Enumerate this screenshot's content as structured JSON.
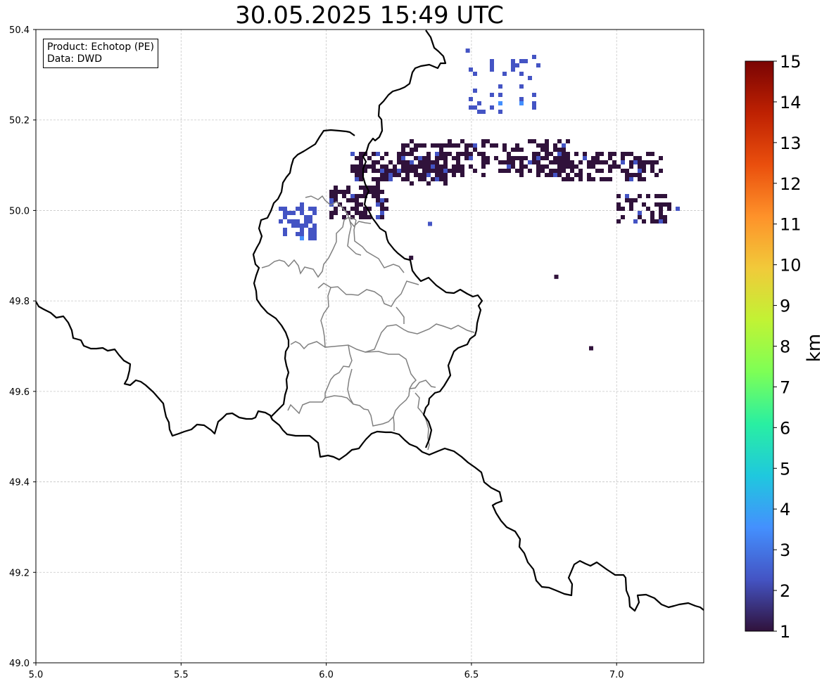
{
  "title": "30.05.2025 15:49 UTC",
  "info": {
    "product": "Product: Echotop (PE)",
    "data": "Data: DWD"
  },
  "map": {
    "lon_range": [
      5.0,
      7.3
    ],
    "lat_range": [
      49.0,
      50.4
    ],
    "x_ticks": [
      "5.0",
      "5.5",
      "6.0",
      "6.5",
      "7.0"
    ],
    "y_ticks": [
      "50.4",
      "50.2",
      "50.0",
      "49.8",
      "49.6",
      "49.4",
      "49.2",
      "49.0"
    ],
    "grid": true
  },
  "colorbar": {
    "label": "km",
    "min": 1,
    "max": 15,
    "ticks": [
      "15",
      "14",
      "13",
      "12",
      "11",
      "10",
      "9",
      "8",
      "7",
      "6",
      "5",
      "4",
      "3",
      "2",
      "1"
    ],
    "colormap": [
      "#30123b",
      "#4454c4",
      "#4490fe",
      "#1fc8de",
      "#29efa2",
      "#7dff56",
      "#c1f334",
      "#f1ca3a",
      "#fe922a",
      "#ea4f0d",
      "#be2102",
      "#7a0403"
    ]
  },
  "echo_top": {
    "value_km_dominant": 1.0,
    "clusters": [
      {
        "lon": 6.55,
        "lat": 50.12,
        "km": 1.0
      },
      {
        "lon": 6.25,
        "lat": 50.1,
        "km": 1.0
      },
      {
        "lon": 6.95,
        "lat": 50.1,
        "km": 1.0
      },
      {
        "lon": 6.1,
        "lat": 50.02,
        "km": 1.3
      },
      {
        "lon": 5.9,
        "lat": 49.98,
        "km": 1.8
      },
      {
        "lon": 7.1,
        "lat": 50.01,
        "km": 1.2
      },
      {
        "lon": 6.6,
        "lat": 50.28,
        "km": 2.5
      }
    ]
  }
}
